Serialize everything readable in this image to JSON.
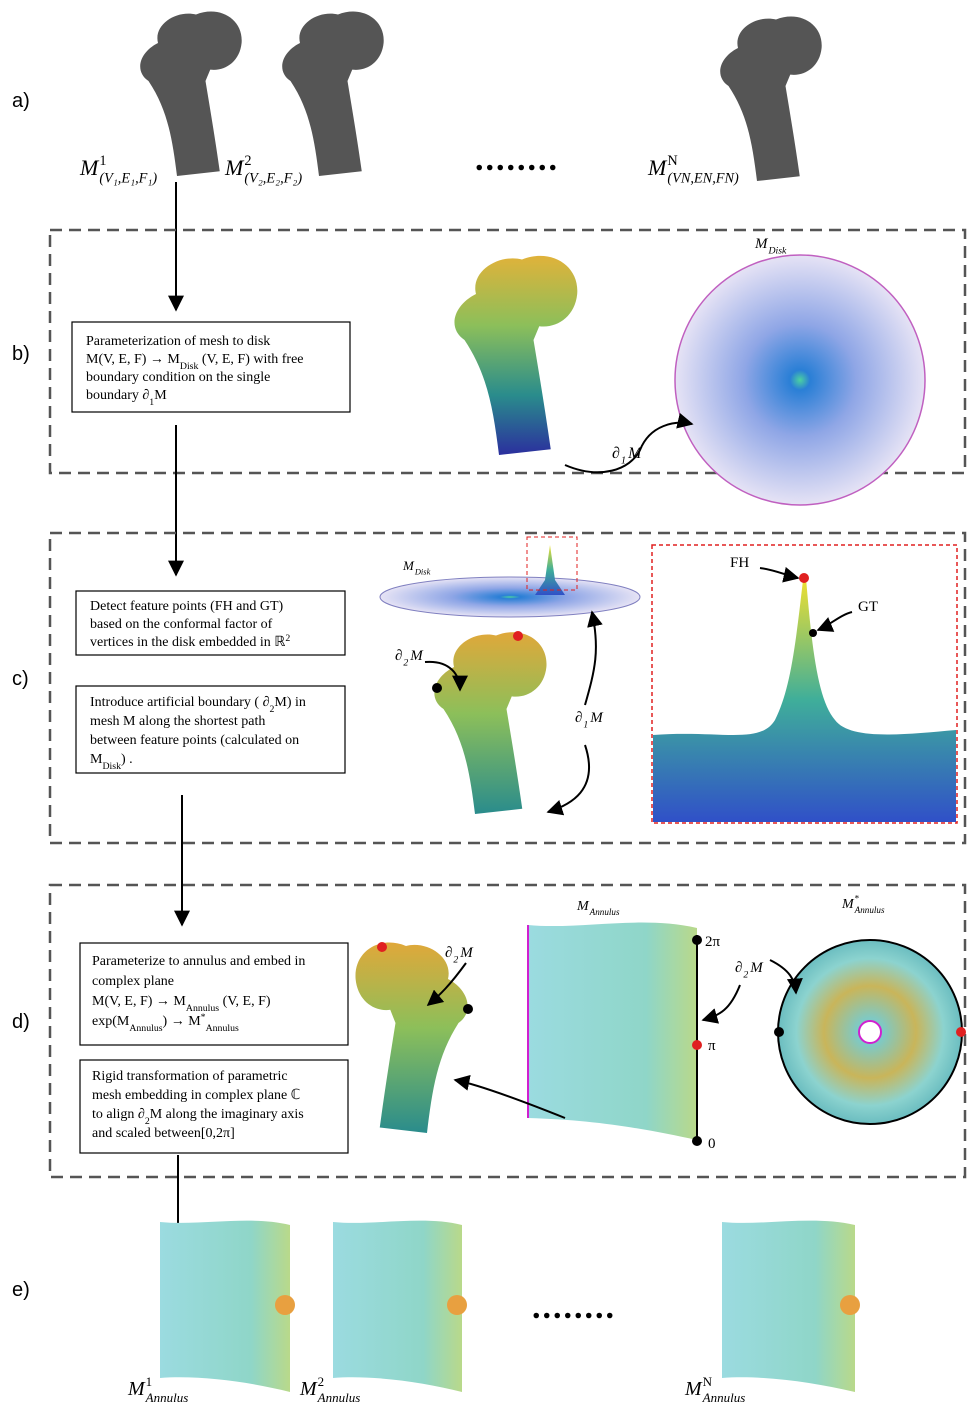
{
  "a": {
    "label": "a)",
    "ellipsis": "........",
    "meshes": [
      {
        "base": "M",
        "sup": "1",
        "sub": "(V₁,E₁,F₁)"
      },
      {
        "base": "M",
        "sup": "2",
        "sub": "(V₂,E₂,F₂)"
      },
      {
        "base": "M",
        "sup": "N",
        "sub": "(VN,EN,FN)"
      }
    ]
  },
  "b": {
    "label": "b)",
    "box": [
      [
        {
          "t": "Parameterization of mesh to disk"
        }
      ],
      [
        {
          "t": "M(V, E, F) → M"
        },
        {
          "sub": "Disk"
        },
        {
          "t": " (V, E, F) with free"
        }
      ],
      [
        {
          "t": "boundary condition on the single"
        }
      ],
      [
        {
          "t": "boundary ∂"
        },
        {
          "sub": "1"
        },
        {
          "t": "M"
        }
      ]
    ],
    "disk_label": {
      "base": "M",
      "sub": "Disk"
    },
    "boundary_label": {
      "base": "∂",
      "sub": "1",
      "after": "M"
    }
  },
  "c": {
    "label": "c)",
    "box1": [
      [
        {
          "t": "Detect feature points (FH and GT)"
        }
      ],
      [
        {
          "t": "based on the conformal factor of"
        }
      ],
      [
        {
          "t": "vertices in the disk embedded in ℝ"
        },
        {
          "sup": "2"
        }
      ]
    ],
    "box2": [
      [
        {
          "t": "Introduce artificial boundary (  ∂"
        },
        {
          "sub": "2"
        },
        {
          "t": "M) in"
        }
      ],
      [
        {
          "t": "mesh    M    along the shortest path"
        }
      ],
      [
        {
          "t": "between feature points (calculated on"
        }
      ],
      [
        {
          "t": "M"
        },
        {
          "sub": "Disk"
        },
        {
          "t": ") ."
        }
      ]
    ],
    "disk_label": {
      "base": "M",
      "sub": "Disk"
    },
    "boundary2_label": {
      "base": "∂",
      "sub": "2",
      "after": "M"
    },
    "boundary1_label": {
      "base": "∂",
      "sub": "1",
      "after": "M"
    },
    "fh": "FH",
    "gt": "GT"
  },
  "d": {
    "label": "d)",
    "box1": [
      [
        {
          "t": "Parameterize to annulus and embed in"
        }
      ],
      [
        {
          "t": "complex plane"
        }
      ],
      [
        {
          "t": "      M(V, E, F) → M"
        },
        {
          "sub": "Annulus"
        },
        {
          "t": " (V, E, F)"
        }
      ],
      [
        {
          "t": "          exp(M"
        },
        {
          "sub": "Annulus"
        },
        {
          "t": ") → M"
        },
        {
          "sup": "*"
        },
        {
          "sub": "Annulus"
        }
      ]
    ],
    "box2": [
      [
        {
          "t": "Rigid transformation of parametric"
        }
      ],
      [
        {
          "t": "mesh embedding in complex plane ℂ"
        }
      ],
      [
        {
          "t": "to align ∂"
        },
        {
          "sub": "2"
        },
        {
          "t": "M along the imaginary axis"
        }
      ],
      [
        {
          "t": "and scaled between[0,2π]"
        }
      ]
    ],
    "boundary_label_bone": {
      "base": "∂",
      "sub": "2",
      "after": "M"
    },
    "boundary_label_circle": {
      "base": "∂",
      "sub": "2",
      "after": "M"
    },
    "annulus_label": {
      "base": "M",
      "sub": "Annulus"
    },
    "annulus_star_label": {
      "base": "M",
      "sup": "*",
      "sub": "Annulus"
    },
    "axis": [
      "2π",
      "π",
      "0"
    ]
  },
  "e": {
    "label": "e)",
    "ellipsis": "........",
    "meshes": [
      {
        "base": "M",
        "sup": "1",
        "sub": "Annulus"
      },
      {
        "base": "M",
        "sup": "2",
        "sub": "Annulus"
      },
      {
        "base": "M",
        "sup": "N",
        "sub": "Annulus"
      }
    ]
  }
}
